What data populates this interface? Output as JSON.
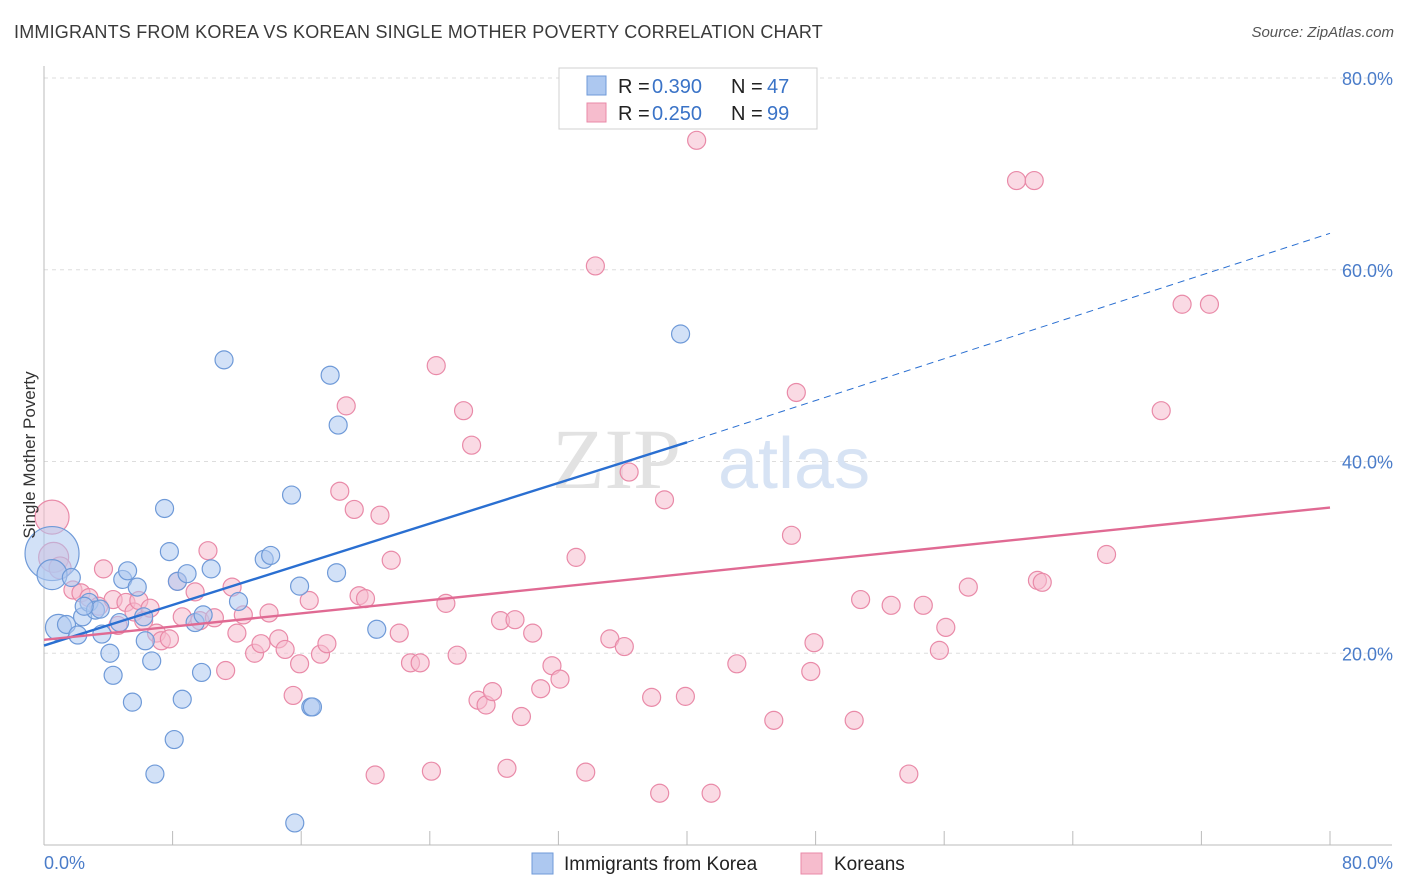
{
  "title": "IMMIGRANTS FROM KOREA VS KOREAN SINGLE MOTHER POVERTY CORRELATION CHART",
  "source": "Source: ZipAtlas.com",
  "watermark": {
    "zip": "ZIP",
    "atlas": "atlas"
  },
  "colors": {
    "blue_fill": "#adc8f0",
    "blue_stroke": "#6f9ad8",
    "blue_line": "#2a6fd1",
    "pink_fill": "#f6bccd",
    "pink_stroke": "#e98aa8",
    "pink_line": "#e06a93",
    "grid": "#dddddd",
    "tick_text": "#4a7cc9"
  },
  "legend": {
    "rows": [
      {
        "r_label": "R = ",
        "r_value": "0.390",
        "n_label": "N = ",
        "n_value": "47"
      },
      {
        "r_label": "R = ",
        "r_value": "0.250",
        "n_label": "N = ",
        "n_value": "99"
      }
    ]
  },
  "bottom_legend": [
    "Immigrants from Korea",
    "Koreans"
  ],
  "chart_data": {
    "type": "scatter",
    "ylabel": "Single Mother Poverty",
    "xlim": [
      0,
      80
    ],
    "ylim": [
      0,
      80
    ],
    "x_ticks_labels": [
      "0.0%",
      "80.0%"
    ],
    "y_ticks": [
      20,
      40,
      60,
      80
    ],
    "y_ticks_labels": [
      "20.0%",
      "40.0%",
      "60.0%",
      "80.0%"
    ],
    "grid": true,
    "legend_position": "top-center",
    "series": [
      {
        "name": "Immigrants from Korea",
        "color": "blue",
        "trend": {
          "x": [
            0,
            40
          ],
          "y": [
            20.8,
            42.0
          ],
          "extend_to_x": 80,
          "extend_y": 63.8
        },
        "points": [
          [
            0.5,
            30.4,
            26
          ],
          [
            0.5,
            28.2,
            14
          ],
          [
            0.9,
            22.7,
            12
          ],
          [
            1.4,
            23.0,
            8
          ],
          [
            1.7,
            27.9,
            8
          ],
          [
            2.1,
            21.9,
            8
          ],
          [
            2.4,
            23.8,
            8
          ],
          [
            2.8,
            25.3,
            8
          ],
          [
            3.2,
            24.5,
            8
          ],
          [
            3.5,
            24.6,
            8
          ],
          [
            3.6,
            22.0,
            8
          ],
          [
            4.1,
            20.0,
            8
          ],
          [
            4.3,
            17.7,
            8
          ],
          [
            4.7,
            23.2,
            8
          ],
          [
            4.9,
            27.7,
            8
          ],
          [
            5.2,
            28.6,
            8
          ],
          [
            5.5,
            14.9,
            8
          ],
          [
            5.8,
            26.9,
            8
          ],
          [
            6.2,
            23.8,
            8
          ],
          [
            6.3,
            21.3,
            8
          ],
          [
            6.7,
            19.2,
            8
          ],
          [
            6.9,
            7.4,
            8
          ],
          [
            7.5,
            35.1,
            8
          ],
          [
            7.8,
            30.6,
            8
          ],
          [
            8.1,
            11.0,
            8
          ],
          [
            8.3,
            27.5,
            8
          ],
          [
            8.6,
            15.2,
            8
          ],
          [
            8.9,
            28.3,
            8
          ],
          [
            9.4,
            23.2,
            8
          ],
          [
            9.8,
            18.0,
            8
          ],
          [
            9.9,
            24.0,
            8
          ],
          [
            10.4,
            28.8,
            8
          ],
          [
            11.2,
            50.6,
            8
          ],
          [
            12.1,
            25.4,
            8
          ],
          [
            13.7,
            29.8,
            8
          ],
          [
            14.1,
            30.2,
            8
          ],
          [
            15.4,
            36.5,
            8
          ],
          [
            15.6,
            2.3,
            8
          ],
          [
            15.9,
            27.0,
            8
          ],
          [
            16.6,
            14.4,
            8
          ],
          [
            16.7,
            14.4,
            8
          ],
          [
            17.8,
            49.0,
            8
          ],
          [
            18.2,
            28.4,
            8
          ],
          [
            18.3,
            43.8,
            8
          ],
          [
            20.7,
            22.5,
            8
          ],
          [
            39.6,
            53.3,
            8
          ],
          [
            2.5,
            24.9,
            8
          ]
        ]
      },
      {
        "name": "Koreans",
        "color": "pink",
        "trend": {
          "x": [
            0,
            80
          ],
          "y": [
            21.4,
            35.2
          ]
        },
        "points": [
          [
            0.5,
            34.2,
            16
          ],
          [
            0.6,
            30.0,
            14
          ],
          [
            1.0,
            28.9,
            10
          ],
          [
            1.8,
            26.6,
            8
          ],
          [
            2.3,
            26.3,
            8
          ],
          [
            2.8,
            25.8,
            8
          ],
          [
            3.4,
            24.9,
            8
          ],
          [
            3.7,
            28.8,
            8
          ],
          [
            4.3,
            25.6,
            8
          ],
          [
            4.6,
            22.9,
            8
          ],
          [
            5.1,
            25.3,
            8
          ],
          [
            5.6,
            24.3,
            8
          ],
          [
            5.9,
            25.5,
            8
          ],
          [
            6.2,
            23.4,
            8
          ],
          [
            6.6,
            24.7,
            8
          ],
          [
            7.0,
            22.1,
            8
          ],
          [
            7.3,
            21.3,
            8
          ],
          [
            7.8,
            21.5,
            8
          ],
          [
            8.3,
            27.5,
            8
          ],
          [
            8.6,
            23.8,
            8
          ],
          [
            9.4,
            26.4,
            8
          ],
          [
            9.7,
            23.4,
            8
          ],
          [
            10.2,
            30.7,
            8
          ],
          [
            10.6,
            23.7,
            8
          ],
          [
            11.3,
            18.2,
            8
          ],
          [
            11.7,
            26.9,
            8
          ],
          [
            12.0,
            22.1,
            8
          ],
          [
            12.4,
            24.0,
            8
          ],
          [
            13.1,
            20.0,
            8
          ],
          [
            13.5,
            21.0,
            8
          ],
          [
            14.0,
            24.2,
            8
          ],
          [
            14.6,
            21.5,
            8
          ],
          [
            15.0,
            20.4,
            8
          ],
          [
            15.5,
            15.6,
            8
          ],
          [
            15.9,
            18.9,
            8
          ],
          [
            16.5,
            25.5,
            8
          ],
          [
            17.2,
            19.9,
            8
          ],
          [
            17.6,
            21.0,
            8
          ],
          [
            18.4,
            36.9,
            8
          ],
          [
            18.8,
            45.8,
            8
          ],
          [
            19.3,
            35.0,
            8
          ],
          [
            19.6,
            26.0,
            8
          ],
          [
            20.0,
            25.7,
            8
          ],
          [
            20.6,
            7.3,
            8
          ],
          [
            20.9,
            34.4,
            8
          ],
          [
            21.6,
            29.7,
            8
          ],
          [
            22.1,
            22.1,
            8
          ],
          [
            22.8,
            19.0,
            8
          ],
          [
            23.4,
            19.0,
            8
          ],
          [
            24.1,
            7.7,
            8
          ],
          [
            24.4,
            50.0,
            8
          ],
          [
            25.0,
            25.2,
            8
          ],
          [
            25.7,
            19.8,
            8
          ],
          [
            26.1,
            45.3,
            8
          ],
          [
            26.6,
            41.7,
            8
          ],
          [
            27.0,
            15.1,
            8
          ],
          [
            27.5,
            14.6,
            8
          ],
          [
            27.9,
            16.0,
            8
          ],
          [
            28.4,
            23.4,
            8
          ],
          [
            28.8,
            8.0,
            8
          ],
          [
            29.3,
            23.5,
            8
          ],
          [
            29.7,
            13.4,
            8
          ],
          [
            30.4,
            22.1,
            8
          ],
          [
            30.9,
            16.3,
            8
          ],
          [
            31.6,
            18.7,
            8
          ],
          [
            32.1,
            17.3,
            8
          ],
          [
            33.1,
            30.0,
            8
          ],
          [
            33.7,
            7.6,
            8
          ],
          [
            34.3,
            60.4,
            8
          ],
          [
            35.2,
            21.5,
            8
          ],
          [
            36.1,
            20.7,
            8
          ],
          [
            36.4,
            38.9,
            8
          ],
          [
            37.8,
            15.4,
            8
          ],
          [
            38.3,
            5.4,
            8
          ],
          [
            38.6,
            36.0,
            8
          ],
          [
            39.9,
            15.5,
            8
          ],
          [
            40.6,
            73.5,
            8
          ],
          [
            41.5,
            5.4,
            8
          ],
          [
            43.1,
            18.9,
            8
          ],
          [
            45.4,
            13.0,
            8
          ],
          [
            46.5,
            32.3,
            8
          ],
          [
            46.8,
            47.2,
            8
          ],
          [
            47.7,
            18.1,
            8
          ],
          [
            47.9,
            21.1,
            8
          ],
          [
            50.4,
            13.0,
            8
          ],
          [
            50.8,
            25.6,
            8
          ],
          [
            52.7,
            25.0,
            8
          ],
          [
            53.8,
            7.4,
            8
          ],
          [
            54.7,
            25.0,
            8
          ],
          [
            55.7,
            20.3,
            8
          ],
          [
            56.1,
            22.7,
            8
          ],
          [
            57.5,
            26.9,
            8
          ],
          [
            60.5,
            69.3,
            8
          ],
          [
            61.6,
            69.3,
            8
          ],
          [
            61.8,
            27.6,
            8
          ],
          [
            62.1,
            27.4,
            8
          ],
          [
            66.1,
            30.3,
            8
          ],
          [
            69.5,
            45.3,
            8
          ],
          [
            70.8,
            56.4,
            8
          ],
          [
            72.5,
            56.4,
            8
          ]
        ]
      }
    ]
  }
}
